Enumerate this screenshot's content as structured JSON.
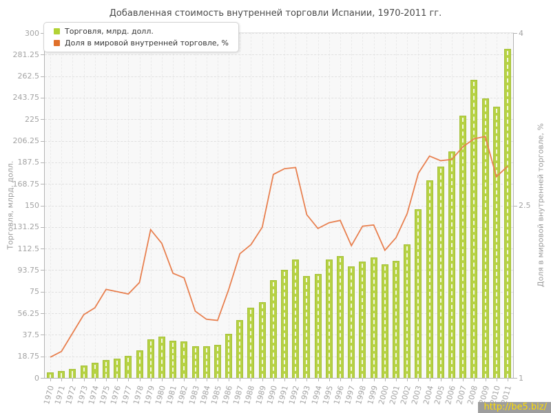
{
  "header": {
    "title": "Добавленная стоимость внутренней торговли Испании, 1970-2011 гг."
  },
  "legend": {
    "items": [
      {
        "label": "Торговля, млрд. долл.",
        "color": "#b2d235"
      },
      {
        "label": "Доля в мировой внутренней торговле, %",
        "color": "#e0702a"
      }
    ]
  },
  "watermark": {
    "text": "http://be5.biz/"
  },
  "chart_data": {
    "type": "bar+line",
    "title": "Добавленная стоимость внутренней торговли Испании, 1970-2011 гг.",
    "categories": [
      "1970",
      "1971",
      "1972",
      "1973",
      "1974",
      "1975",
      "1976",
      "1977",
      "1978",
      "1979",
      "1980",
      "1981",
      "1982",
      "1983",
      "1984",
      "1985",
      "1986",
      "1987",
      "1988",
      "1989",
      "1990",
      "1991",
      "1992",
      "1993",
      "1994",
      "1995",
      "1996",
      "1997",
      "1998",
      "1999",
      "2000",
      "2001",
      "2002",
      "2003",
      "2004",
      "2005",
      "2006",
      "2007",
      "2008",
      "2009",
      "2010",
      "2011"
    ],
    "series": [
      {
        "name": "Торговля, млрд. долл.",
        "type": "bar",
        "axis": "left",
        "color": "#b6d243",
        "values": [
          5,
          6,
          8,
          10.5,
          13,
          15.5,
          16.5,
          19,
          24,
          33.5,
          36,
          32.5,
          31.5,
          27.5,
          27.5,
          29,
          38.5,
          50.5,
          61,
          66,
          85,
          94,
          103,
          88.5,
          90.5,
          103,
          106,
          97,
          101,
          105,
          99,
          102,
          116,
          147,
          172,
          184,
          197,
          228,
          259,
          243,
          236,
          286
        ]
      },
      {
        "name": "Доля в мировой внутренней торговле, %",
        "type": "line",
        "axis": "right",
        "color": "#e87f4e",
        "values": [
          1.18,
          1.23,
          1.39,
          1.55,
          1.61,
          1.77,
          1.75,
          1.73,
          1.83,
          2.29,
          2.17,
          1.91,
          1.87,
          1.58,
          1.51,
          1.5,
          1.77,
          2.08,
          2.16,
          2.31,
          2.77,
          2.82,
          2.83,
          2.42,
          2.3,
          2.35,
          2.37,
          2.15,
          2.32,
          2.33,
          2.11,
          2.22,
          2.43,
          2.78,
          2.93,
          2.89,
          2.9,
          3.01,
          3.08,
          3.1,
          2.75,
          2.84
        ]
      }
    ],
    "left_axis": {
      "title": "Торговля, млрд. долл.",
      "min": 0,
      "max": 300,
      "tick_values": [
        0,
        18.75,
        37.5,
        56.25,
        75,
        93.75,
        112.5,
        131.25,
        150,
        168.75,
        187.5,
        206.25,
        225,
        243.75,
        262.5,
        281.25,
        300
      ],
      "tick_labels": [
        "0",
        "18.75",
        "37.5",
        "56.25",
        "75",
        "93.75",
        "112.5",
        "131.25",
        "150",
        "168.75",
        "187.5",
        "206.25",
        "225",
        "243.75",
        "262.5",
        "281.25",
        "300"
      ]
    },
    "right_axis": {
      "title": "Доля в мировой внутренней торговле, %",
      "min": 1,
      "max": 4,
      "tick_values": [
        1,
        2.5,
        4
      ],
      "tick_labels": [
        "1",
        "2.5",
        "4"
      ]
    },
    "grid": true,
    "legend_position": "top-left"
  }
}
